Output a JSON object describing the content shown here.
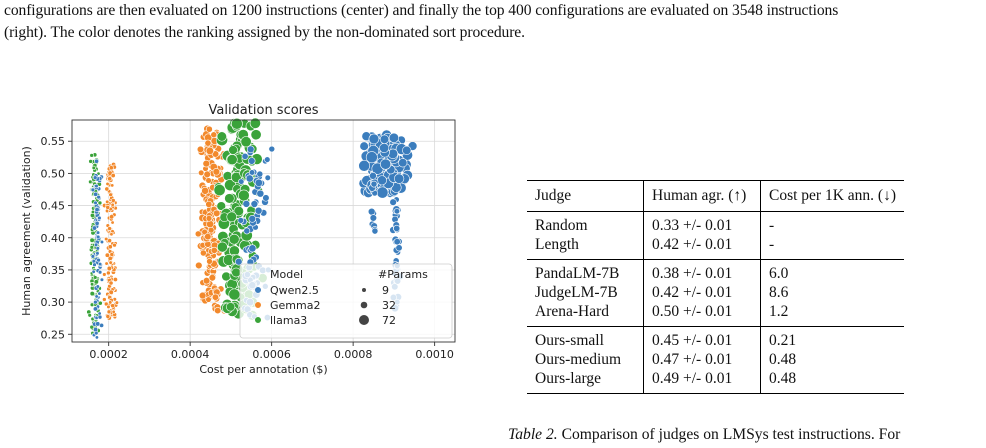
{
  "intro": {
    "line1": "configurations are then evaluated on 1200 instructions (center) and finally the top 400 configurations are evaluated on 3548 instructions",
    "line2": "(right). The color denotes the ranking assigned by the non-dominated sort procedure."
  },
  "chart_data": {
    "type": "scatter",
    "title": "Validation scores",
    "xlabel": "Cost per annotation ($)",
    "ylabel": "Human agreement (validation)",
    "xlim": [
      0.00011,
      0.00105
    ],
    "ylim": [
      0.238,
      0.583
    ],
    "xticks": [
      "0.0002",
      "0.0004",
      "0.0006",
      "0.0008",
      "0.0010"
    ],
    "xtick_values": [
      0.0002,
      0.0004,
      0.0006,
      0.0008,
      0.001
    ],
    "yticks": [
      "0.25",
      "0.30",
      "0.35",
      "0.40",
      "0.45",
      "0.50",
      "0.55"
    ],
    "ytick_values": [
      0.25,
      0.3,
      0.35,
      0.4,
      0.45,
      0.5,
      0.55
    ],
    "grid": true,
    "legend_position": "lower-right",
    "legend_model_title": "Model",
    "legend_params_title": "#Params",
    "series": [
      {
        "name": "Qwen2.5",
        "color": "#3b7dbd"
      },
      {
        "name": "Gemma2",
        "color": "#f2892c"
      },
      {
        "name": "llama3",
        "color": "#3aa33a"
      }
    ],
    "params_sizes": [
      {
        "label": "9",
        "radius": 2.0
      },
      {
        "label": "32",
        "radius": 3.3
      },
      {
        "label": "72",
        "radius": 5.0
      }
    ],
    "clusters": [
      {
        "series": "llama3",
        "xcenter": 0.000165,
        "xspread": 1.8e-05,
        "yrange": [
          0.25,
          0.53
        ],
        "n": 150,
        "size": "9"
      },
      {
        "series": "Qwen2.5",
        "xcenter": 0.000172,
        "xspread": 1.5e-05,
        "yrange": [
          0.245,
          0.52
        ],
        "n": 80,
        "size": "9"
      },
      {
        "series": "Gemma2",
        "xcenter": 0.000205,
        "xspread": 1.8e-05,
        "yrange": [
          0.275,
          0.515
        ],
        "n": 150,
        "size": "9"
      },
      {
        "series": "Gemma2",
        "xcenter": 0.00045,
        "xspread": 4e-05,
        "yrange": [
          0.285,
          0.57
        ],
        "n": 190,
        "size": "32"
      },
      {
        "series": "llama3",
        "xcenter": 0.00052,
        "xspread": 7e-05,
        "yrange": [
          0.275,
          0.58
        ],
        "n": 160,
        "size": "72"
      },
      {
        "series": "Qwen2.5",
        "xcenter": 0.00056,
        "xspread": 5e-05,
        "yrange": [
          0.27,
          0.54
        ],
        "n": 70,
        "size": "32"
      },
      {
        "series": "Qwen2.5",
        "xcenter": 0.00088,
        "xspread": 7.5e-05,
        "yrange": [
          0.47,
          0.56
        ],
        "n": 140,
        "size": "72"
      },
      {
        "series": "Qwen2.5",
        "xcenter": 0.000905,
        "xspread": 1.2e-05,
        "yrange": [
          0.29,
          0.46
        ],
        "n": 40,
        "size": "32"
      },
      {
        "series": "Qwen2.5",
        "xcenter": 0.00085,
        "xspread": 8e-06,
        "yrange": [
          0.41,
          0.5
        ],
        "n": 14,
        "size": "32"
      }
    ]
  },
  "table": {
    "headers": [
      "Judge",
      "Human agr. (↑)",
      "Cost per 1K ann. (↓)"
    ],
    "groups": [
      [
        {
          "judge": "Random",
          "agr": "0.33 +/- 0.01",
          "cost": "-"
        },
        {
          "judge": "Length",
          "agr": "0.42 +/- 0.01",
          "cost": "-"
        }
      ],
      [
        {
          "judge": "PandaLM-7B",
          "agr": "0.38 +/- 0.01",
          "cost": "6.0"
        },
        {
          "judge": "JudgeLM-7B",
          "agr": "0.42 +/- 0.01",
          "cost": "8.6"
        },
        {
          "judge": "Arena-Hard",
          "agr": "0.50 +/- 0.01",
          "cost": "1.2"
        }
      ],
      [
        {
          "judge": "Ours-small",
          "agr": "0.45 +/- 0.01",
          "cost": "0.21"
        },
        {
          "judge": "Ours-medium",
          "agr": "0.47 +/- 0.01",
          "cost": "0.48"
        },
        {
          "judge": "Ours-large",
          "agr": "0.49 +/- 0.01",
          "cost": "0.48"
        }
      ]
    ]
  },
  "caption": {
    "label": "Table 2.",
    "text": "Comparison of judges on LMSys test instructions. For"
  }
}
